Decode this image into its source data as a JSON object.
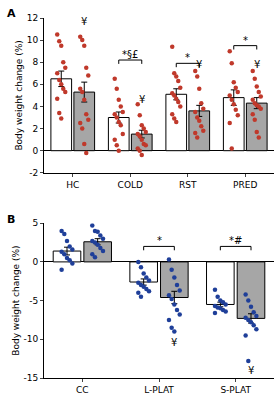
{
  "chart_data": [
    {
      "type": "bar",
      "title": "A",
      "y_label": "Body weight change (%)",
      "categories": [
        "HC",
        "COLD",
        "RST",
        "PRED"
      ],
      "ylim": [
        -2,
        12
      ],
      "yticks": [
        -2,
        0,
        2,
        4,
        6,
        8,
        10,
        12
      ],
      "grid": false,
      "series": [
        {
          "type": "bar",
          "color": "#ffffff",
          "values": [
            6.5,
            3.0,
            5.1,
            4.8
          ],
          "error": [
            0.7,
            0.5,
            0.5,
            0.7
          ]
        },
        {
          "type": "bar",
          "color": "#a6a6a6",
          "values": [
            5.3,
            1.5,
            3.6,
            4.3
          ],
          "error": [
            0.9,
            0.35,
            0.5,
            0.5
          ],
          "annotations": [
            {
              "text": "¥",
              "category": "HC",
              "y": 11.7
            },
            {
              "text": "¥",
              "category": "COLD",
              "y": 4.6
            },
            {
              "text": "¥",
              "category": "RST",
              "y": 7.8
            },
            {
              "text": "¥",
              "category": "PRED",
              "y": 7.8
            }
          ]
        },
        {
          "type": "scatter",
          "marker": "circle",
          "color": "#c0392b",
          "values": [
            [
              10.5,
              9.9,
              9.5,
              8.0,
              7.5,
              7.0,
              6.4,
              6.0,
              5.6,
              5.3,
              4.7,
              3.4,
              2.9
            ],
            [
              6.5,
              5.6,
              4.6,
              4.0,
              3.5,
              3.3,
              3.0,
              2.6,
              2.3,
              1.5,
              1.0,
              0.5,
              0.0
            ],
            [
              9.4,
              7.0,
              6.7,
              6.3,
              5.7,
              5.2,
              5.0,
              4.7,
              4.4,
              4.0,
              3.3,
              2.9,
              2.6
            ],
            [
              9.0,
              7.9,
              6.2,
              5.7,
              5.3,
              5.0,
              4.6,
              4.2,
              3.7,
              3.2,
              2.5,
              0.2
            ]
          ]
        },
        {
          "type": "scatter",
          "marker": "circle",
          "color": "#c0392b",
          "values": [
            [
              10.3,
              10.0,
              9.5,
              7.5,
              6.8,
              5.6,
              5.3,
              4.6,
              3.3,
              2.8,
              2.5,
              2.0,
              0.6,
              -0.2
            ],
            [
              4.2,
              3.2,
              2.3,
              2.0,
              1.7,
              1.5,
              1.3,
              1.0,
              0.6,
              0.5,
              0.2,
              0.0,
              -0.4
            ],
            [
              7.2,
              6.7,
              5.6,
              4.3,
              3.8,
              3.5,
              3.0,
              2.7,
              2.2,
              1.8,
              1.6,
              1.2
            ],
            [
              7.2,
              6.5,
              5.8,
              5.3,
              4.9,
              4.6,
              4.3,
              4.1,
              4.0,
              3.8,
              3.3,
              2.8,
              1.7,
              1.2
            ]
          ]
        }
      ],
      "brackets": [
        {
          "text": "*§£",
          "category": "COLD",
          "y": 8.2
        },
        {
          "text": "*",
          "category": "RST",
          "y": 7.9
        },
        {
          "text": "*",
          "category": "PRED",
          "y": 9.5
        }
      ]
    },
    {
      "type": "bar",
      "title": "B",
      "y_label": "Body weight change (%)",
      "categories": [
        "CC",
        "L-PLAT",
        "S-PLAT"
      ],
      "ylim": [
        -15,
        5
      ],
      "yticks": [
        -15,
        -10,
        -5,
        0,
        5
      ],
      "grid": false,
      "series": [
        {
          "type": "bar",
          "color": "#ffffff",
          "values": [
            1.4,
            -2.6,
            -5.5
          ],
          "error": [
            0.5,
            0.4,
            0.3
          ]
        },
        {
          "type": "bar",
          "color": "#a6a6a6",
          "values": [
            2.6,
            -4.6,
            -7.3
          ],
          "error": [
            0.4,
            0.8,
            0.6
          ],
          "annotations": [
            {
              "text": "¥",
              "category": "L-PLAT",
              "y": -10.4
            },
            {
              "text": "¥",
              "category": "S-PLAT",
              "y": -14.0
            }
          ]
        },
        {
          "type": "scatter",
          "marker": "circle",
          "color": "#1f3f99",
          "values": [
            [
              4.0,
              3.6,
              2.7,
              2.0,
              1.6,
              1.3,
              1.0,
              0.5,
              0.2,
              -0.2,
              -1.0
            ],
            [
              0.0,
              -0.7,
              -1.5,
              -2.0,
              -2.4,
              -2.7,
              -3.0,
              -3.2,
              -3.5,
              -3.8,
              -4.0,
              -4.5
            ],
            [
              -3.6,
              -4.5,
              -5.0,
              -5.2,
              -5.5,
              -5.7,
              -5.9,
              -6.0,
              -6.2,
              -6.4,
              -6.6
            ]
          ]
        },
        {
          "type": "scatter",
          "marker": "circle",
          "color": "#1f3f99",
          "values": [
            [
              4.7,
              4.0,
              3.9,
              3.4,
              3.0,
              2.7,
              2.5,
              2.2,
              1.8,
              1.4,
              1.0,
              0.6
            ],
            [
              0.3,
              -1.0,
              -2.0,
              -3.0,
              -3.7,
              -4.3,
              -4.8,
              -5.5,
              -6.2,
              -6.8,
              -7.5,
              -8.5,
              -9.0
            ],
            [
              -4.2,
              -5.0,
              -5.8,
              -6.5,
              -7.0,
              -7.2,
              -7.5,
              -7.8,
              -8.2,
              -8.7,
              -9.5,
              -12.8
            ]
          ]
        }
      ],
      "brackets": [
        {
          "text": "*",
          "category": "L-PLAT",
          "y": 2.0
        },
        {
          "text": "*#",
          "category": "S-PLAT",
          "y": 2.0
        }
      ]
    }
  ]
}
